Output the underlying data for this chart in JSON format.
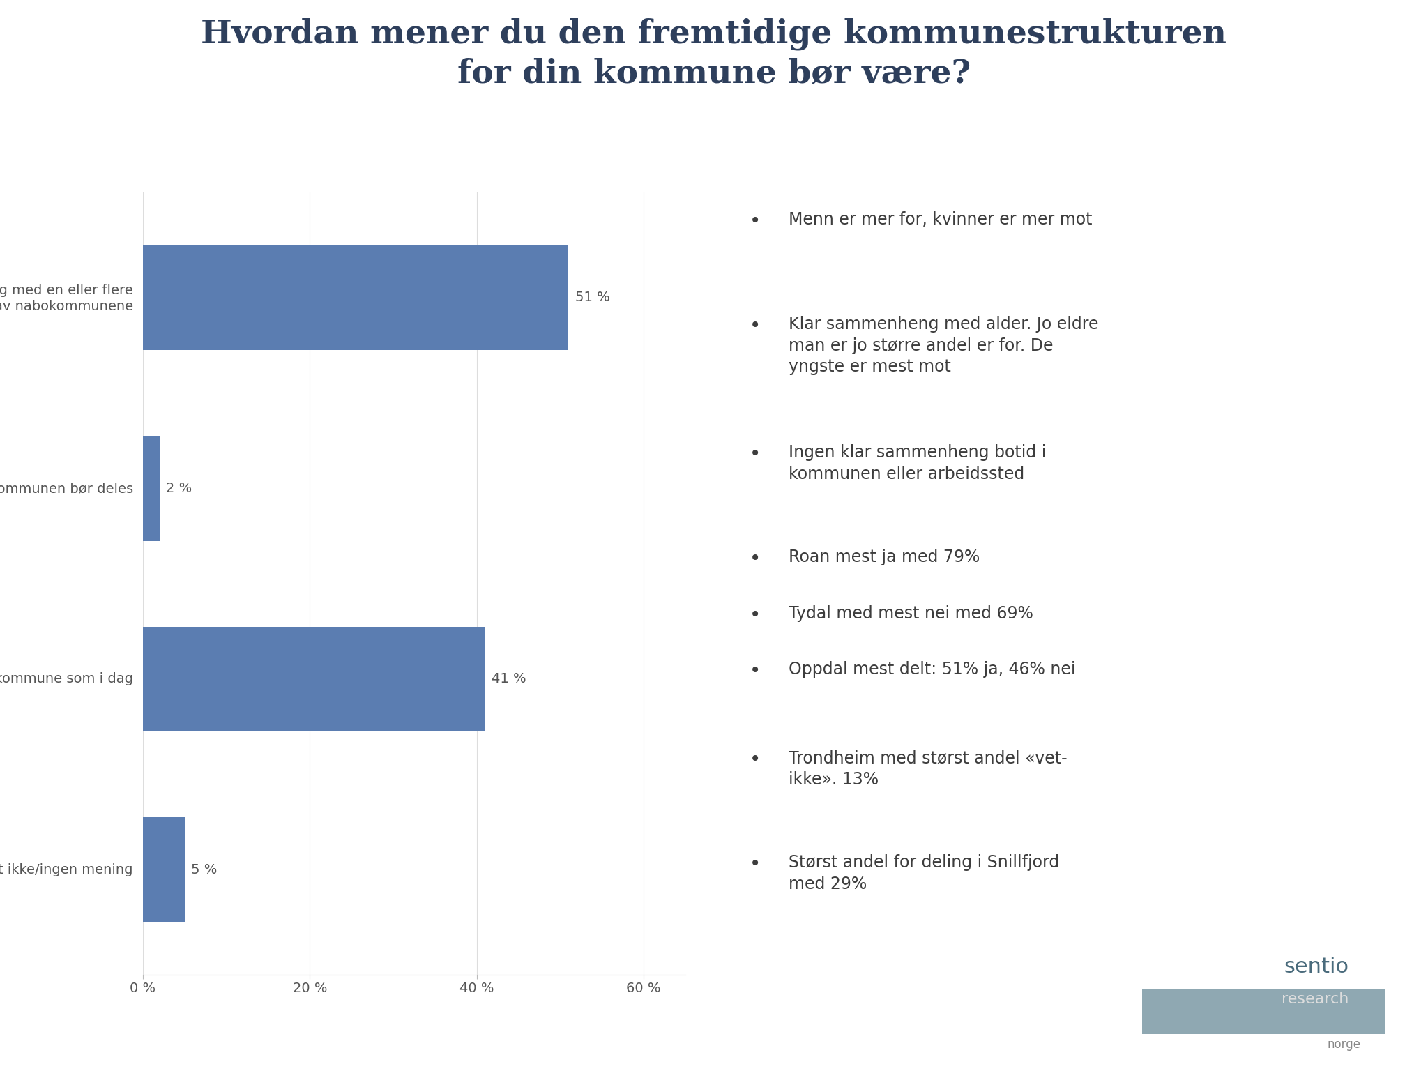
{
  "title": "Hvordan mener du den fremtidige kommunestrukturen\nfor din kommune bør være?",
  "title_color": "#2E3F5C",
  "title_fontsize": 34,
  "categories": [
    "Sammenslåing med en eller flere\nav nabokommunene",
    "Kommunen bør deles",
    "Være egen kommune som i dag",
    "Vet ikke/ingen mening"
  ],
  "values": [
    51,
    2,
    41,
    5
  ],
  "bar_color": "#5B7DB1",
  "value_labels": [
    "51 %",
    "2 %",
    "41 %",
    "5 %"
  ],
  "xlim": [
    0,
    65
  ],
  "xtick_values": [
    0,
    20,
    40,
    60
  ],
  "xtick_labels": [
    "0 %",
    "20 %",
    "40 %",
    "60 %"
  ],
  "background_color": "#FFFFFF",
  "bullet_points": [
    "Menn er mer for, kvinner er mer mot",
    "Klar sammenheng med alder. Jo eldre\nman er jo større andel er for. De\nyngste er mest mot",
    "Ingen klar sammenheng botid i\nkommunen eller arbeidssted",
    "Roan mest ja med 79%",
    "Tydal med mest nei med 69%",
    "Oppdal mest delt: 51% ja, 46% nei",
    "Trondheim med størst andel «vet-\nikke». 13%",
    "Størst andel for deling i Snillfjord\nmed 29%"
  ],
  "bullet_fontsize": 17,
  "label_fontsize": 14,
  "tick_fontsize": 14,
  "divider_color": "#4A7A8A",
  "sentio_color": "#4A6B7C",
  "sentio_bg": "#8FA8B2"
}
